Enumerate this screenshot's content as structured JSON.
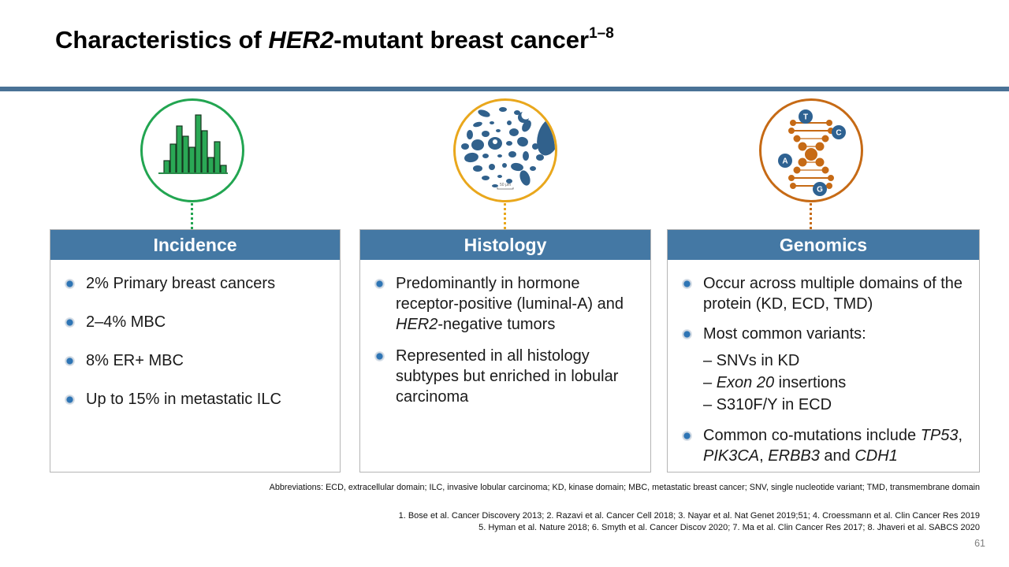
{
  "slide": {
    "title": {
      "prefix": "Characteristics of ",
      "gene_italic": "HER2",
      "suffix": "-mutant breast cancer",
      "superscript": "1–8"
    },
    "page_number": "61"
  },
  "colors": {
    "header": "#4478a4",
    "divider": "#4a7296",
    "text": "#1a1a1a",
    "box_border": "#b5b5b5",
    "bullet": "#2e75b5",
    "page_number": "#7f7f7f",
    "histology_blob": "#31618c",
    "nucleotide_badge": "#2e6292"
  },
  "columns": [
    {
      "header": "Incidence",
      "icon": "histogram-icon",
      "accent_color": "#22a551",
      "bullets": [
        {
          "segments": [
            {
              "t": "2% Primary breast cancers"
            }
          ]
        },
        {
          "segments": [
            {
              "t": "2–4% MBC"
            }
          ]
        },
        {
          "segments": [
            {
              "t": "8% ER+ MBC"
            }
          ]
        },
        {
          "segments": [
            {
              "t": "Up to 15% in metastatic ILC"
            }
          ]
        }
      ]
    },
    {
      "header": "Histology",
      "icon": "histology-micrograph-icon",
      "accent_color": "#e9a71c",
      "icon_scale_label": "50 μm",
      "bullets": [
        {
          "segments": [
            {
              "t": "Predominantly in hormone receptor-positive (luminal-A) and "
            },
            {
              "t": "HER2",
              "i": true
            },
            {
              "t": "-negative tumors"
            }
          ]
        },
        {
          "segments": [
            {
              "t": "Represented in all histology subtypes but enriched in lobular carcinoma"
            }
          ]
        }
      ]
    },
    {
      "header": "Genomics",
      "icon": "dna-icon",
      "accent_color": "#c66a15",
      "icon_letters": [
        "T",
        "C",
        "A",
        "G"
      ],
      "bullets": [
        {
          "segments": [
            {
              "t": "Occur across multiple domains of the protein (KD, ECD, TMD)"
            }
          ]
        },
        {
          "segments": [
            {
              "t": "Most common variants:"
            }
          ],
          "sub": [
            {
              "segments": [
                {
                  "t": "– SNVs in KD"
                }
              ]
            },
            {
              "segments": [
                {
                  "t": "– "
                },
                {
                  "t": "Exon 20",
                  "i": true
                },
                {
                  "t": " insertions"
                }
              ]
            },
            {
              "segments": [
                {
                  "t": "– S310F/Y in ECD"
                }
              ]
            }
          ]
        },
        {
          "segments": [
            {
              "t": "Common co-mutations include "
            },
            {
              "t": "TP53",
              "i": true
            },
            {
              "t": ", "
            },
            {
              "t": "PIK3CA",
              "i": true
            },
            {
              "t": ", "
            },
            {
              "t": "ERBB3",
              "i": true
            },
            {
              "t": " and "
            },
            {
              "t": "CDH1",
              "i": true
            }
          ]
        }
      ]
    }
  ],
  "footnotes": {
    "abbreviations": "Abbreviations: ECD, extracellular domain; ILC, invasive lobular carcinoma; KD, kinase domain; MBC, metastatic breast cancer; SNV, single nucleotide variant; TMD, transmembrane domain",
    "references_line1": "1. Bose et al. Cancer Discovery 2013; 2. Razavi et al. Cancer Cell 2018; 3. Nayar et al. Nat Genet 2019;51; 4. Croessmann et al. Clin Cancer Res 2019",
    "references_line2": "5. Hyman et al. Nature 2018; 6. Smyth et al. Cancer Discov 2020; 7. Ma et al. Clin Cancer Res 2017; 8. Jhaveri et al. SABCS 2020"
  }
}
